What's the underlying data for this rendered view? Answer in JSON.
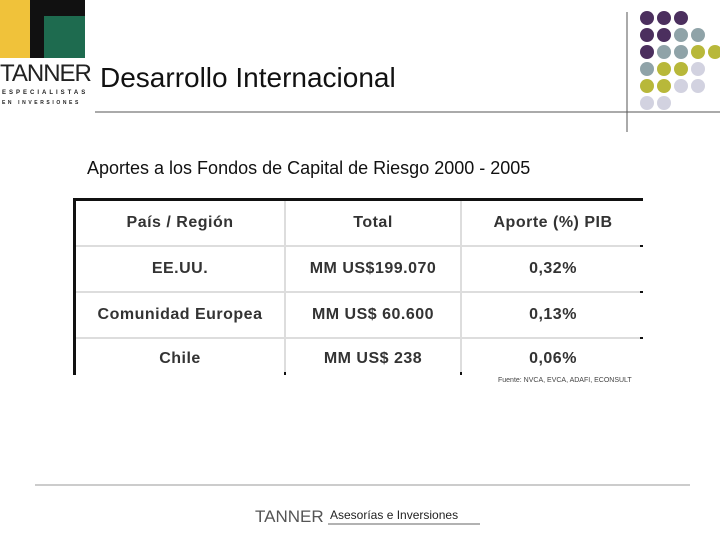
{
  "logo": {
    "name": "TANNER",
    "tagline_1": "ESPECIALISTAS",
    "tagline_2": "EN INVERSIONES"
  },
  "header": {
    "title": "Desarrollo Internacional"
  },
  "subtitle": "Aportes a los Fondos de Capital de Riesgo 2000 - 2005",
  "table": {
    "columns": [
      "País / Región",
      "Total",
      "Aporte (%) PIB"
    ],
    "rows": [
      [
        "EE.UU.",
        "MM US$199.070",
        "0,32%"
      ],
      [
        "Comunidad Europea",
        "MM US$ 60.600",
        "0,13%"
      ],
      [
        "Chile",
        "MM US$ 238",
        "0,06%"
      ]
    ]
  },
  "source": "Fuente: NVCA, EVCA, ADAFI, ECONSULT",
  "footer": {
    "brand": "TANNER",
    "text": "Asesorías e Inversiones"
  }
}
